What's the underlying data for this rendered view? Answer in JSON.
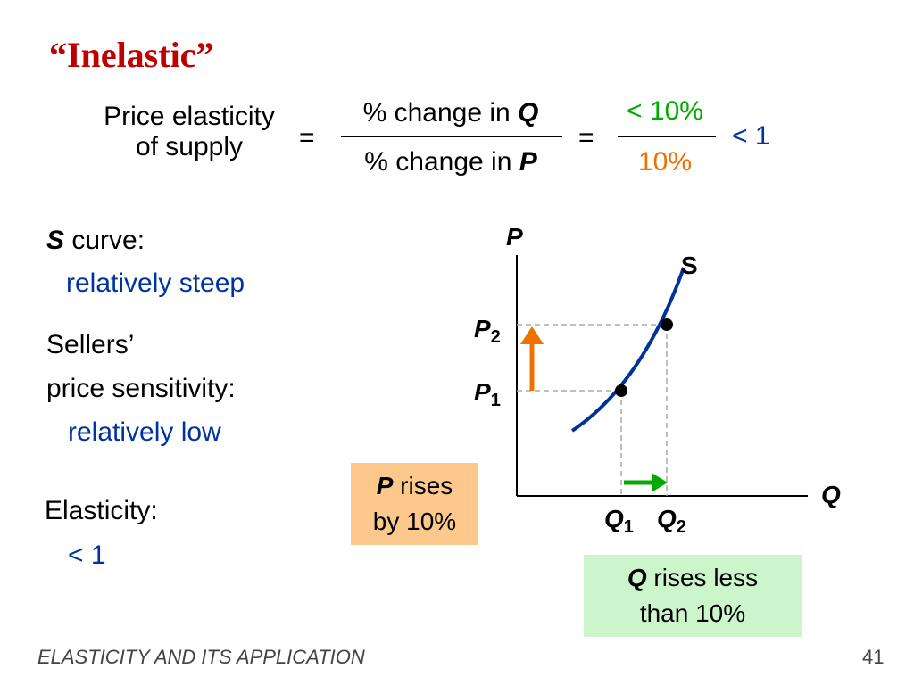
{
  "title": "“Inelastic”",
  "formula": {
    "lhs_line1": "Price elasticity",
    "lhs_line2": "of supply",
    "eq1": "=",
    "num_prefix": "% change in ",
    "num_var": "Q",
    "den_prefix": "% change in ",
    "den_var": "P",
    "eq2": "=",
    "num_value": "< 10%",
    "den_value": "10%",
    "result": "< 1"
  },
  "left": {
    "s_label": "S",
    "s_curve_suffix": " curve:",
    "s_curve_desc": "relatively steep",
    "sellers_line1": "Sellers’",
    "sellers_line2": "price sensitivity:",
    "sensitivity_desc": "relatively low",
    "elasticity_label": "Elasticity:",
    "elasticity_value": "< 1"
  },
  "boxes": {
    "p_rises_var": "P",
    "p_rises_rest": " rises",
    "p_rises_line2": "by 10%",
    "q_rises_var": "Q",
    "q_rises_rest": " rises less",
    "q_rises_line2": "than 10%"
  },
  "graph": {
    "y_axis_label": "P",
    "x_axis_label": "Q",
    "curve_label": "S",
    "p1_base": "P",
    "p1_sub": "1",
    "p2_base": "P",
    "p2_sub": "2",
    "q1_base": "Q",
    "q1_sub": "1",
    "q2_base": "Q",
    "q2_sub": "2"
  },
  "colors": {
    "title": "#c00000",
    "blue": "#0033a0",
    "orange": "#f07000",
    "green": "#00aa00",
    "box_orange": "#fcc88c",
    "box_green": "#ccf5cc"
  },
  "footer": {
    "left": "ELASTICITY AND ITS APPLICATION",
    "page": "41"
  }
}
